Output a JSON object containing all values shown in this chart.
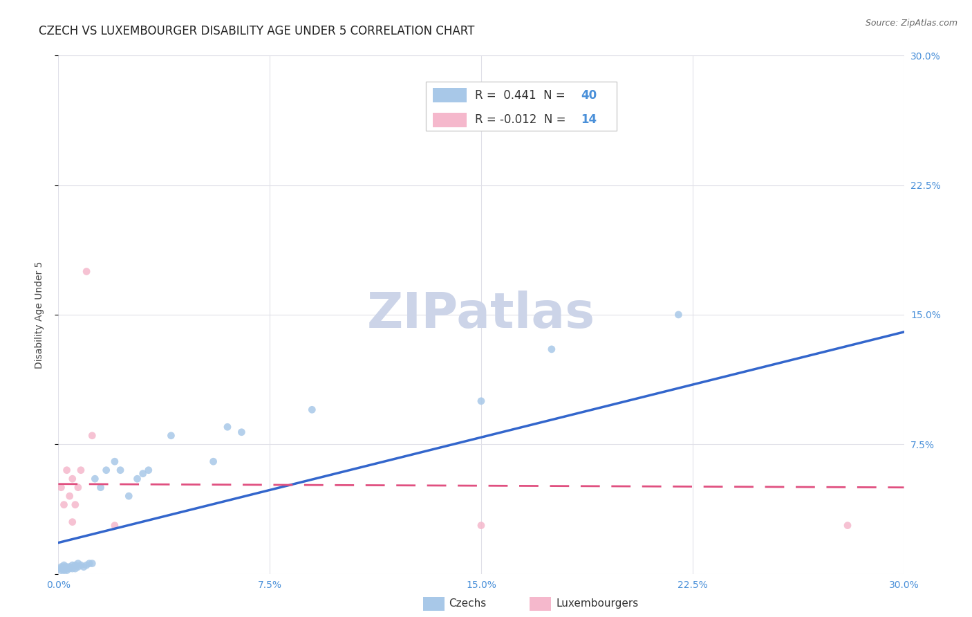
{
  "title": "CZECH VS LUXEMBOURGER DISABILITY AGE UNDER 5 CORRELATION CHART",
  "source": "Source: ZipAtlas.com",
  "ylabel": "Disability Age Under 5",
  "xlim": [
    0,
    0.3
  ],
  "ylim": [
    0,
    0.3
  ],
  "xticks": [
    0.0,
    0.075,
    0.15,
    0.225,
    0.3
  ],
  "yticks": [
    0.0,
    0.075,
    0.15,
    0.225,
    0.3
  ],
  "xtick_labels": [
    "0.0%",
    "7.5%",
    "15.0%",
    "22.5%",
    "30.0%"
  ],
  "right_ytick_labels": [
    "",
    "7.5%",
    "15.0%",
    "22.5%",
    "30.0%"
  ],
  "background_color": "#ffffff",
  "grid_color": "#e0e0e8",
  "czech_color": "#a8c8e8",
  "czech_line_color": "#3366cc",
  "luxembourger_color": "#f5b8cc",
  "luxembourger_line_color": "#e05080",
  "watermark_color": "#ccd4e8",
  "legend_R_czech": "0.441",
  "legend_N_czech": "40",
  "legend_R_lux": "-0.012",
  "legend_N_lux": "14",
  "czech_x": [
    0.001,
    0.001,
    0.001,
    0.002,
    0.002,
    0.002,
    0.002,
    0.003,
    0.003,
    0.003,
    0.004,
    0.004,
    0.005,
    0.005,
    0.006,
    0.006,
    0.007,
    0.007,
    0.008,
    0.009,
    0.01,
    0.011,
    0.012,
    0.013,
    0.015,
    0.017,
    0.02,
    0.022,
    0.025,
    0.028,
    0.03,
    0.032,
    0.04,
    0.055,
    0.06,
    0.065,
    0.09,
    0.15,
    0.175,
    0.22
  ],
  "czech_y": [
    0.002,
    0.003,
    0.004,
    0.002,
    0.003,
    0.004,
    0.005,
    0.002,
    0.003,
    0.004,
    0.003,
    0.004,
    0.003,
    0.005,
    0.003,
    0.005,
    0.004,
    0.006,
    0.005,
    0.004,
    0.005,
    0.006,
    0.006,
    0.055,
    0.05,
    0.06,
    0.065,
    0.06,
    0.045,
    0.055,
    0.058,
    0.06,
    0.08,
    0.065,
    0.085,
    0.082,
    0.095,
    0.1,
    0.13,
    0.15
  ],
  "lux_x": [
    0.001,
    0.002,
    0.003,
    0.004,
    0.005,
    0.005,
    0.006,
    0.007,
    0.008,
    0.01,
    0.012,
    0.02,
    0.15,
    0.28
  ],
  "lux_y": [
    0.05,
    0.04,
    0.06,
    0.045,
    0.03,
    0.055,
    0.04,
    0.05,
    0.06,
    0.175,
    0.08,
    0.028,
    0.028,
    0.028
  ],
  "czech_trend_x": [
    0.0,
    0.3
  ],
  "czech_trend_y": [
    0.018,
    0.14
  ],
  "lux_trend_x": [
    0.0,
    0.3
  ],
  "lux_trend_y": [
    0.052,
    0.05
  ],
  "title_fontsize": 12,
  "axis_label_fontsize": 10,
  "tick_fontsize": 10,
  "legend_fontsize": 12,
  "dot_size": 60
}
